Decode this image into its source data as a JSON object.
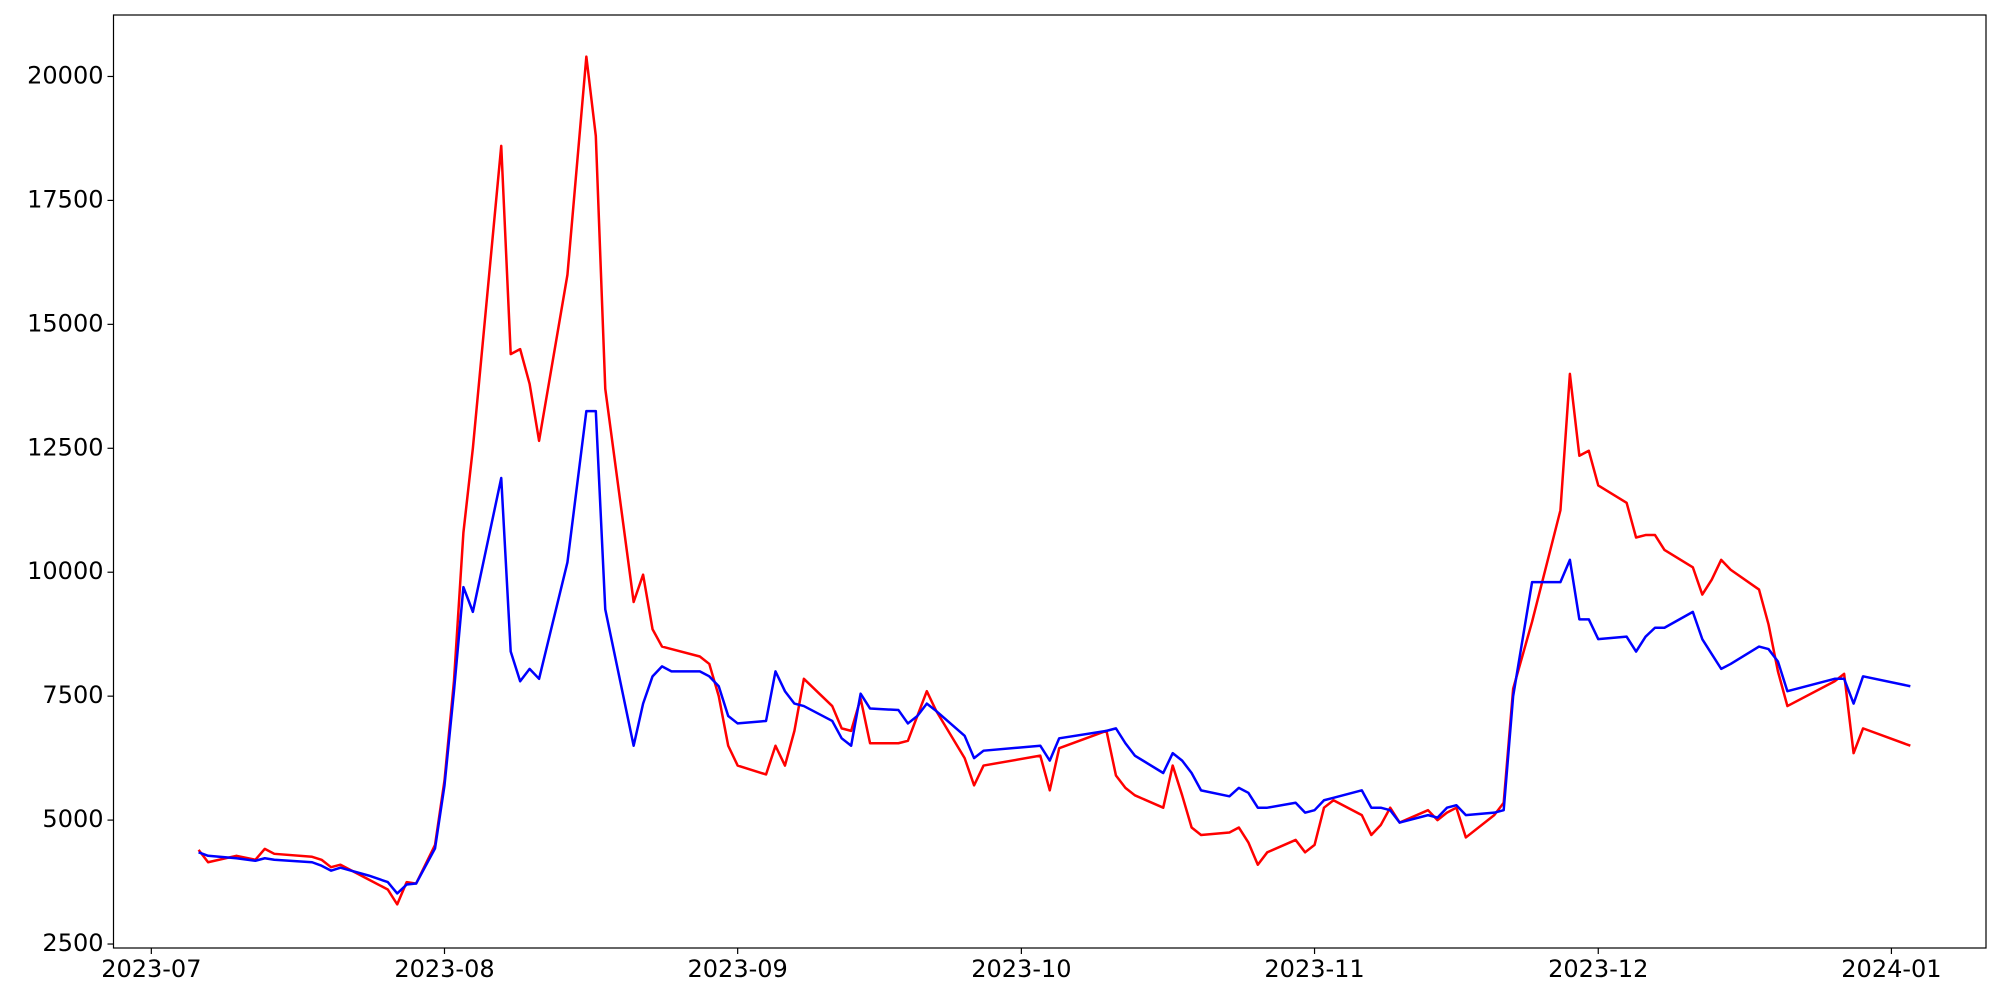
{
  "chart_data": {
    "type": "line",
    "x": [
      "2023-07-06",
      "2023-07-07",
      "2023-07-10",
      "2023-07-12",
      "2023-07-13",
      "2023-07-14",
      "2023-07-18",
      "2023-07-19",
      "2023-07-20",
      "2023-07-21",
      "2023-07-24",
      "2023-07-26",
      "2023-07-27",
      "2023-07-28",
      "2023-07-29",
      "2023-07-31",
      "2023-08-01",
      "2023-08-02",
      "2023-08-03",
      "2023-08-04",
      "2023-08-07",
      "2023-08-08",
      "2023-08-09",
      "2023-08-10",
      "2023-08-11",
      "2023-08-14",
      "2023-08-16",
      "2023-08-17",
      "2023-08-18",
      "2023-08-21",
      "2023-08-22",
      "2023-08-23",
      "2023-08-24",
      "2023-08-25",
      "2023-08-28",
      "2023-08-29",
      "2023-08-30",
      "2023-08-31",
      "2023-09-01",
      "2023-09-04",
      "2023-09-05",
      "2023-09-06",
      "2023-09-07",
      "2023-09-08",
      "2023-09-11",
      "2023-09-12",
      "2023-09-13",
      "2023-09-14",
      "2023-09-15",
      "2023-09-18",
      "2023-09-19",
      "2023-09-20",
      "2023-09-21",
      "2023-09-22",
      "2023-09-25",
      "2023-09-26",
      "2023-09-27",
      "2023-10-03",
      "2023-10-04",
      "2023-10-05",
      "2023-10-10",
      "2023-10-11",
      "2023-10-12",
      "2023-10-13",
      "2023-10-16",
      "2023-10-17",
      "2023-10-18",
      "2023-10-19",
      "2023-10-20",
      "2023-10-23",
      "2023-10-24",
      "2023-10-25",
      "2023-10-26",
      "2023-10-27",
      "2023-10-30",
      "2023-10-31",
      "2023-11-01",
      "2023-11-02",
      "2023-11-03",
      "2023-11-06",
      "2023-11-07",
      "2023-11-08",
      "2023-11-09",
      "2023-11-10",
      "2023-11-13",
      "2023-11-14",
      "2023-11-15",
      "2023-11-16",
      "2023-11-17",
      "2023-11-20",
      "2023-11-21",
      "2023-11-22",
      "2023-11-24",
      "2023-11-27",
      "2023-11-28",
      "2023-11-29",
      "2023-11-30",
      "2023-12-01",
      "2023-12-04",
      "2023-12-05",
      "2023-12-06",
      "2023-12-07",
      "2023-12-08",
      "2023-12-11",
      "2023-12-12",
      "2023-12-13",
      "2023-12-14",
      "2023-12-15",
      "2023-12-18",
      "2023-12-19",
      "2023-12-20",
      "2023-12-21",
      "2023-12-26",
      "2023-12-27",
      "2023-12-28",
      "2023-12-29",
      "2024-01-03"
    ],
    "series": [
      {
        "color": "#ff0000",
        "values": [
          4400,
          4150,
          4280,
          4200,
          4420,
          4320,
          4260,
          4200,
          4050,
          4100,
          3800,
          3600,
          3300,
          3750,
          3720,
          4500,
          5800,
          7800,
          10800,
          12500,
          18600,
          14400,
          14500,
          13800,
          12650,
          16000,
          20400,
          18800,
          13700,
          9400,
          9950,
          8850,
          8500,
          8450,
          8300,
          8150,
          7500,
          6500,
          6100,
          5920,
          6500,
          6100,
          6800,
          7850,
          7300,
          6850,
          6800,
          7450,
          6550,
          6550,
          6600,
          7100,
          7600,
          7200,
          6250,
          5700,
          6100,
          6300,
          5600,
          6450,
          6800,
          5900,
          5650,
          5500,
          5250,
          6100,
          5500,
          4850,
          4700,
          4750,
          4850,
          4550,
          4100,
          4350,
          4600,
          4350,
          4500,
          5250,
          5400,
          5100,
          4700,
          4900,
          5250,
          4950,
          5200,
          5000,
          5150,
          5250,
          4650,
          5100,
          5350,
          7650,
          9000,
          11250,
          14000,
          12350,
          12450,
          11750,
          11400,
          10700,
          10750,
          10750,
          10450,
          10100,
          9550,
          9850,
          10250,
          10050,
          9650,
          8950,
          8000,
          7300,
          7800,
          7950,
          6350,
          6850,
          6500
        ]
      },
      {
        "color": "#0000ff",
        "values": [
          4350,
          4280,
          4230,
          4180,
          4230,
          4200,
          4150,
          4080,
          3980,
          4040,
          3880,
          3750,
          3520,
          3700,
          3720,
          4430,
          5700,
          7600,
          9700,
          9200,
          11900,
          8400,
          7800,
          8050,
          7850,
          10200,
          13250,
          13250,
          9250,
          6500,
          7350,
          7900,
          8100,
          8000,
          8000,
          7900,
          7700,
          7100,
          6950,
          7000,
          8000,
          7600,
          7350,
          7300,
          7000,
          6650,
          6500,
          7550,
          7250,
          7220,
          6950,
          7100,
          7350,
          7200,
          6700,
          6250,
          6400,
          6500,
          6200,
          6650,
          6800,
          6850,
          6550,
          6300,
          5950,
          6350,
          6200,
          5950,
          5600,
          5480,
          5650,
          5550,
          5250,
          5250,
          5350,
          5150,
          5200,
          5400,
          5450,
          5600,
          5250,
          5250,
          5200,
          4950,
          5100,
          5050,
          5250,
          5300,
          5100,
          5150,
          5200,
          7500,
          9800,
          9800,
          10250,
          9050,
          9050,
          8650,
          8700,
          8400,
          8700,
          8880,
          8880,
          9200,
          8650,
          8350,
          8050,
          8150,
          8500,
          8450,
          8200,
          7600,
          7850,
          7850,
          7350,
          7900,
          7700
        ]
      }
    ],
    "xlim": [
      "2023-06-27",
      "2024-01-11"
    ],
    "xticks": [
      {
        "value": "2023-07-01",
        "label": "2023-07"
      },
      {
        "value": "2023-08-01",
        "label": "2023-08"
      },
      {
        "value": "2023-09-01",
        "label": "2023-09"
      },
      {
        "value": "2023-10-01",
        "label": "2023-10"
      },
      {
        "value": "2023-11-01",
        "label": "2023-11"
      },
      {
        "value": "2023-12-01",
        "label": "2023-12"
      },
      {
        "value": "2024-01-01",
        "label": "2024-01"
      }
    ],
    "ylim": [
      2420,
      21240
    ],
    "yticks": [
      2500,
      5000,
      7500,
      10000,
      12500,
      15000,
      17500,
      20000
    ],
    "grid": false
  }
}
